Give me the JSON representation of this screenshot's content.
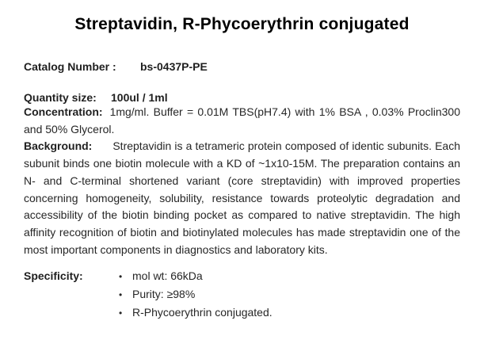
{
  "page": {
    "title": "Streptavidin, R-Phycoerythrin conjugated"
  },
  "fields": [
    {
      "label": "Catalog Number :",
      "value": "bs-0437P-PE"
    },
    {
      "label": "Quantity size:",
      "value": "100ul / 1ml"
    }
  ],
  "concentration": {
    "label": "Concentration:",
    "text": "1mg/ml. Buffer = 0.01M TBS(pH7.4) with 1% BSA , 0.03% Proclin300 and 50% Glycerol."
  },
  "background": {
    "label": "Background:",
    "text": "Streptavidin is a tetrameric protein composed of identic subunits. Each subunit binds one biotin molecule with a KD of ~1x10-15M. The preparation contains an N- and C-terminal shortened variant (core streptavidin) with improved properties concerning homogeneity, solubility, resistance towards proteolytic degradation and accessibility of the biotin binding pocket as compared to native streptavidin. The high affinity recognition of biotin and biotinylated molecules has made streptavidin one of the most important components in diagnostics and laboratory kits."
  },
  "specificity": {
    "label": "Specificity:",
    "bullet_char": "•",
    "bullets": [
      "mol wt: 66kDa",
      "Purity: ≥98%",
      "R-Phycoerythrin conjugated."
    ]
  }
}
